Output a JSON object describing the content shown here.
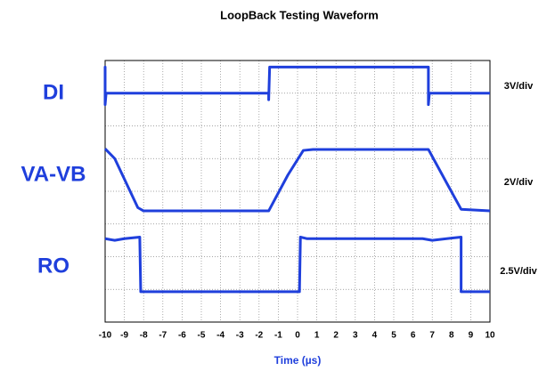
{
  "chart_data": {
    "type": "line",
    "title": "LoopBack Testing Waveform",
    "x_label": "Time (µs)",
    "xlim": [
      -10,
      10
    ],
    "xticks": [
      -10,
      -9,
      -8,
      -7,
      -6,
      -5,
      -4,
      -3,
      -2,
      -1,
      0,
      1,
      2,
      3,
      4,
      5,
      6,
      7,
      8,
      9,
      10
    ],
    "ylim": [
      0,
      8
    ],
    "yticks": [
      0,
      1,
      2,
      3,
      4,
      5,
      6,
      7,
      8
    ],
    "grid": true,
    "series": [
      {
        "name": "DI",
        "scale": "3V/div",
        "color": "#1f3fdc",
        "x": [
          -10,
          -10,
          -10,
          -9.95,
          -1.5,
          -1.5,
          -1.45,
          6.8,
          6.8,
          6.85,
          10
        ],
        "values": [
          7.0,
          7.8,
          6.65,
          7.0,
          7.0,
          6.8,
          7.8,
          7.8,
          6.65,
          7.0,
          7.0
        ]
      },
      {
        "name": "VA-VB",
        "scale": "2V/div",
        "color": "#1f3fdc",
        "x": [
          -10,
          -9.5,
          -8.3,
          -8,
          -1.5,
          -0.5,
          0.3,
          0.8,
          6.8,
          7.8,
          8.5,
          10
        ],
        "values": [
          5.3,
          5.0,
          3.5,
          3.4,
          3.4,
          4.5,
          5.25,
          5.28,
          5.28,
          4.2,
          3.45,
          3.4
        ]
      },
      {
        "name": "RO",
        "scale": "2.5V/div",
        "color": "#1f3fdc",
        "x": [
          -10,
          -9.5,
          -9,
          -8.2,
          -8.15,
          0.1,
          0.15,
          0.5,
          6.5,
          7,
          8.5,
          8.5,
          10
        ],
        "values": [
          2.55,
          2.5,
          2.55,
          2.6,
          0.93,
          0.93,
          2.6,
          2.55,
          2.55,
          2.5,
          2.6,
          0.93,
          0.93
        ]
      }
    ]
  }
}
